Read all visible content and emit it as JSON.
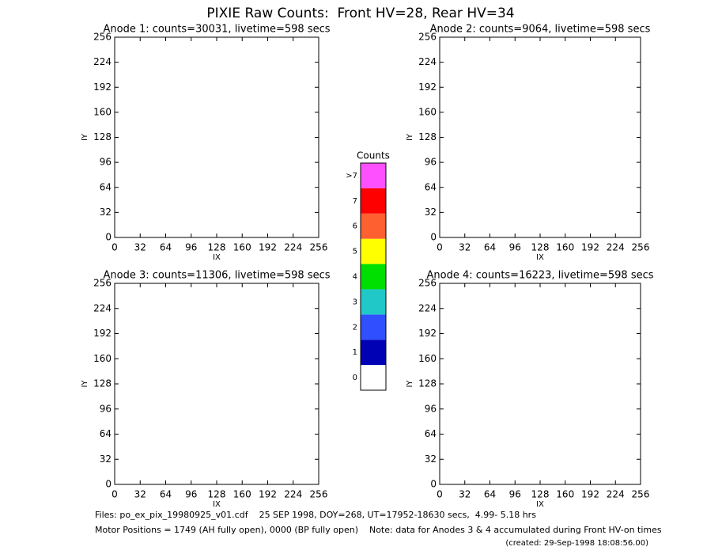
{
  "title": "PIXIE Raw Counts:  Front HV=28, Rear HV=34",
  "chart_data": [
    {
      "type": "heatmap",
      "title": "Anode 1: counts=30031, livetime=598 secs",
      "xlabel": "IX",
      "ylabel": "IY",
      "xlim": [
        0,
        256
      ],
      "ylim": [
        0,
        256
      ],
      "xticks": [
        0,
        32,
        64,
        96,
        128,
        160,
        192,
        224,
        256
      ],
      "yticks": [
        0,
        32,
        64,
        96,
        128,
        160,
        192,
        224,
        256
      ]
    },
    {
      "type": "heatmap",
      "title": "Anode 2: counts=9064, livetime=598 secs",
      "xlabel": "IX",
      "ylabel": "IY",
      "xlim": [
        0,
        256
      ],
      "ylim": [
        0,
        256
      ],
      "xticks": [
        0,
        32,
        64,
        96,
        128,
        160,
        192,
        224,
        256
      ],
      "yticks": [
        0,
        32,
        64,
        96,
        128,
        160,
        192,
        224,
        256
      ]
    },
    {
      "type": "heatmap",
      "title": "Anode 3: counts=11306, livetime=598 secs",
      "xlabel": "IX",
      "ylabel": "IY",
      "xlim": [
        0,
        256
      ],
      "ylim": [
        0,
        256
      ],
      "xticks": [
        0,
        32,
        64,
        96,
        128,
        160,
        192,
        224,
        256
      ],
      "yticks": [
        0,
        32,
        64,
        96,
        128,
        160,
        192,
        224,
        256
      ]
    },
    {
      "type": "heatmap",
      "title": "Anode 4: counts=16223, livetime=598 secs",
      "xlabel": "IX",
      "ylabel": "IY",
      "xlim": [
        0,
        256
      ],
      "ylim": [
        0,
        256
      ],
      "xticks": [
        0,
        32,
        64,
        96,
        128,
        160,
        192,
        224,
        256
      ],
      "yticks": [
        0,
        32,
        64,
        96,
        128,
        160,
        192,
        224,
        256
      ]
    }
  ],
  "colorbar": {
    "title": "Counts",
    "ticks": [
      0,
      1,
      2,
      3,
      4,
      5,
      6,
      7,
      {
        "value": 8,
        "label": ">7"
      }
    ],
    "colors": [
      "#ffffff",
      "#0000b4",
      "#3050ff",
      "#20c8c8",
      "#00e000",
      "#ffff00",
      "#ff6030",
      "#ff0000",
      "#ff50ff"
    ]
  },
  "footer": {
    "files": "Files: po_ex_pix_19980925_v01.cdf    25 SEP 1998, DOY=268, UT=17952-18630 secs,  4.99- 5.18 hrs",
    "motor": "Motor Positions = 1749 (AH fully open), 0000 (BP fully open)    Note: data for Anodes 3 & 4 accumulated during Front HV-on times",
    "created": "(created: 29-Sep-1998 18:08:56.00)"
  }
}
